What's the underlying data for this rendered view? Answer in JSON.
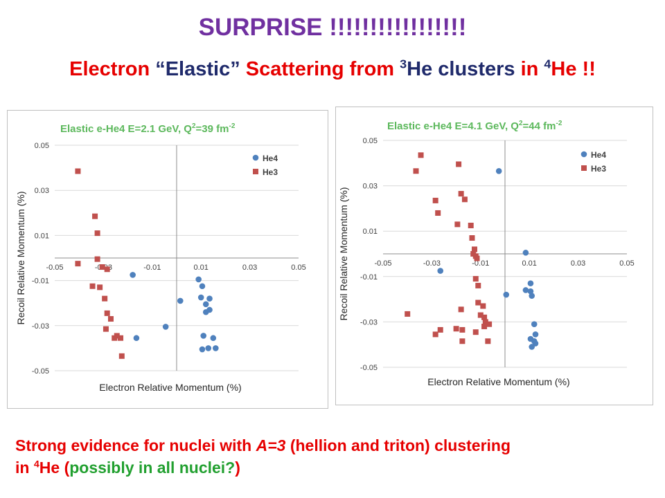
{
  "title": "SURPRISE !!!!!!!!!!!!!!!!!",
  "subtitle": {
    "part1": "Electron ",
    "part2": "“Elastic”",
    "part3": " Scattering from ",
    "sup3": "3",
    "part4": "He clusters",
    "part5": " in ",
    "sup4": "4",
    "part6": "He !!"
  },
  "conclusion": {
    "line1_pre": "Strong evidence for nuclei with ",
    "line1_em": "A=3",
    "line1_post": " (hellion and triton) clustering",
    "line2_pre": "in ",
    "line2_sup": "4",
    "line2_mid": "He (",
    "line2_green": "possibly in all nuclei?",
    "line2_end": ")"
  },
  "colors": {
    "he4": "#4f81bd",
    "he3": "#c0504d",
    "title": "#7030a0",
    "chart_title": "#5cb85c"
  },
  "chart_data": [
    {
      "type": "scatter",
      "title": "Elastic e-He4  E=2.1 GeV, Q",
      "title_sup": "2",
      "title_tail": "=39 fm",
      "title_tail_sup": "-2",
      "xlabel": "Electron Relative Momentum (%)",
      "ylabel": "Recoil Relative Momentum (%)",
      "xlim": [
        -0.05,
        0.05
      ],
      "ylim": [
        -0.05,
        0.05
      ],
      "xticks": [
        -0.05,
        -0.03,
        -0.01,
        0.01,
        0.03,
        0.05
      ],
      "xtick_labels": [
        "-0.05",
        "-0.03",
        "-0.01",
        "0.01",
        "0.03",
        "0.05"
      ],
      "yticks": [
        0.05,
        0.03,
        0.01,
        -0.01,
        -0.03,
        -0.05
      ],
      "ytick_labels": [
        "0.05",
        "0.03",
        "0.01",
        "-0.01",
        "-0.03",
        "-0.05"
      ],
      "legend_position": "top-right",
      "series": [
        {
          "name": "He4",
          "marker": "circle",
          "color": "#4f81bd",
          "points": [
            [
              -0.018,
              -0.0075
            ],
            [
              -0.0165,
              -0.0355
            ],
            [
              -0.0045,
              -0.0305
            ],
            [
              0.0015,
              -0.019
            ],
            [
              0.009,
              -0.0095
            ],
            [
              0.01,
              -0.0175
            ],
            [
              0.0105,
              -0.0125
            ],
            [
              0.012,
              -0.0205
            ],
            [
              0.012,
              -0.024
            ],
            [
              0.0135,
              -0.018
            ],
            [
              0.0135,
              -0.023
            ],
            [
              0.011,
              -0.0345
            ],
            [
              0.015,
              -0.0355
            ],
            [
              0.013,
              -0.04
            ],
            [
              0.0105,
              -0.0405
            ],
            [
              0.016,
              -0.04
            ]
          ]
        },
        {
          "name": "He3",
          "marker": "square",
          "color": "#c0504d",
          "points": [
            [
              -0.0405,
              0.0385
            ],
            [
              -0.0405,
              -0.0025
            ],
            [
              -0.0335,
              0.0185
            ],
            [
              -0.0325,
              0.011
            ],
            [
              -0.0325,
              -0.0005
            ],
            [
              -0.0305,
              -0.004
            ],
            [
              -0.0285,
              -0.005
            ],
            [
              -0.0345,
              -0.0125
            ],
            [
              -0.0315,
              -0.013
            ],
            [
              -0.0295,
              -0.018
            ],
            [
              -0.0285,
              -0.0245
            ],
            [
              -0.029,
              -0.0315
            ],
            [
              -0.027,
              -0.027
            ],
            [
              -0.0255,
              -0.0355
            ],
            [
              -0.0245,
              -0.0345
            ],
            [
              -0.023,
              -0.0355
            ],
            [
              -0.0225,
              -0.0435
            ]
          ]
        }
      ]
    },
    {
      "type": "scatter",
      "title": "Elastic e-He4  E=4.1 GeV, Q",
      "title_sup": "2",
      "title_tail": "=44 fm",
      "title_tail_sup": "-2",
      "xlabel": "Electron Relative Momentum (%)",
      "ylabel": "Recoil Relative Momentum (%)",
      "xlim": [
        -0.05,
        0.05
      ],
      "ylim": [
        -0.05,
        0.05
      ],
      "xticks": [
        -0.05,
        -0.03,
        -0.01,
        0.01,
        0.03,
        0.05
      ],
      "xtick_labels": [
        "-0.05",
        "-0.03",
        "-0.01",
        "0.01",
        "0.03",
        "0.05"
      ],
      "yticks": [
        0.05,
        0.03,
        0.01,
        -0.01,
        -0.03,
        -0.05
      ],
      "ytick_labels": [
        "0.05",
        "0.03",
        "0.01",
        "-0.01",
        "-0.03",
        "-0.05"
      ],
      "legend_position": "top-right",
      "series": [
        {
          "name": "He4",
          "marker": "circle",
          "color": "#4f81bd",
          "points": [
            [
              -0.0025,
              0.0365
            ],
            [
              0.0085,
              0.0005
            ],
            [
              -0.0265,
              -0.0075
            ],
            [
              0.0005,
              -0.018
            ],
            [
              0.0085,
              -0.016
            ],
            [
              0.0105,
              -0.013
            ],
            [
              0.0105,
              -0.0165
            ],
            [
              0.011,
              -0.0185
            ],
            [
              0.012,
              -0.031
            ],
            [
              0.0105,
              -0.0375
            ],
            [
              0.0125,
              -0.0355
            ],
            [
              0.012,
              -0.0385
            ],
            [
              0.0125,
              -0.0395
            ],
            [
              0.011,
              -0.041
            ]
          ]
        },
        {
          "name": "He3",
          "marker": "square",
          "color": "#c0504d",
          "points": [
            [
              -0.0345,
              0.0435
            ],
            [
              -0.0365,
              0.0365
            ],
            [
              -0.019,
              0.0395
            ],
            [
              -0.0285,
              0.0235
            ],
            [
              -0.0275,
              0.018
            ],
            [
              -0.018,
              0.0265
            ],
            [
              -0.0165,
              0.024
            ],
            [
              -0.0195,
              0.013
            ],
            [
              -0.014,
              0.0125
            ],
            [
              -0.0135,
              0.007
            ],
            [
              -0.0125,
              0.002
            ],
            [
              -0.013,
              0.0
            ],
            [
              -0.012,
              -0.001
            ],
            [
              -0.0115,
              -0.002
            ],
            [
              -0.012,
              -0.011
            ],
            [
              -0.011,
              -0.014
            ],
            [
              -0.011,
              -0.0215
            ],
            [
              -0.009,
              -0.023
            ],
            [
              -0.018,
              -0.0245
            ],
            [
              -0.01,
              -0.027
            ],
            [
              -0.0085,
              -0.028
            ],
            [
              -0.008,
              -0.03
            ],
            [
              -0.0085,
              -0.032
            ],
            [
              -0.0065,
              -0.031
            ],
            [
              -0.04,
              -0.0265
            ],
            [
              -0.0285,
              -0.0355
            ],
            [
              -0.0265,
              -0.0335
            ],
            [
              -0.02,
              -0.033
            ],
            [
              -0.0175,
              -0.0335
            ],
            [
              -0.012,
              -0.0345
            ],
            [
              -0.0175,
              -0.0385
            ],
            [
              -0.007,
              -0.0385
            ]
          ]
        }
      ]
    }
  ]
}
